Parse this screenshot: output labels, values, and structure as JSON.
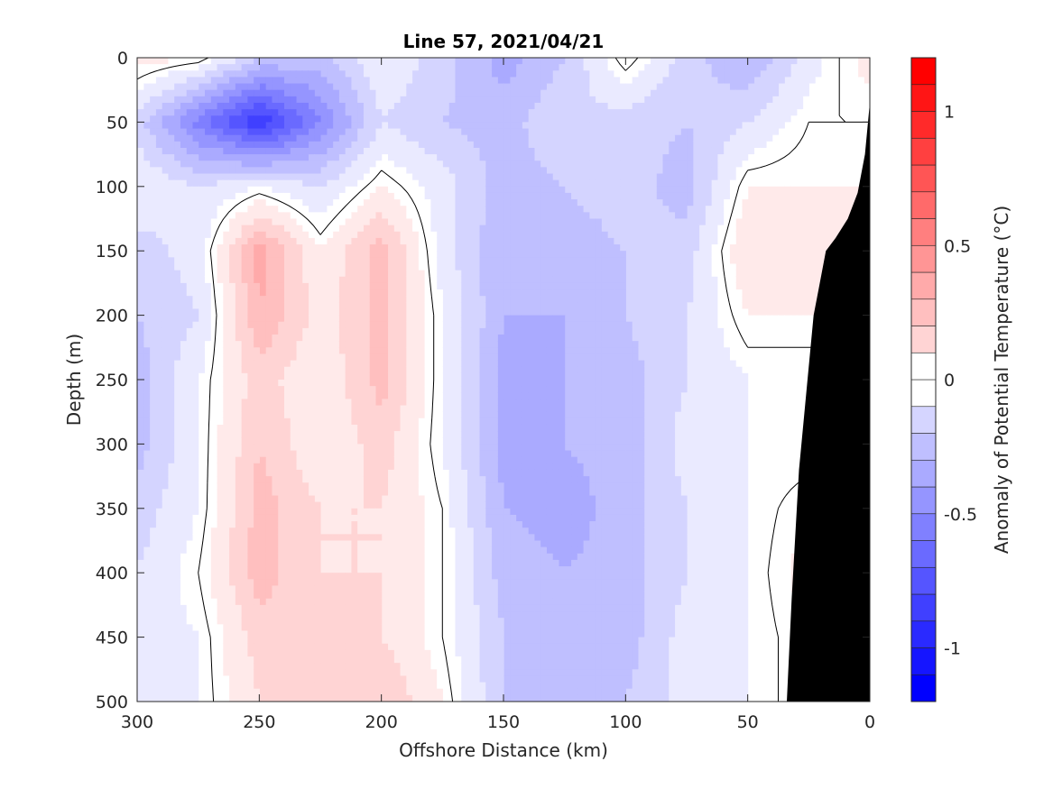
{
  "chart_data": {
    "type": "heatmap",
    "title": "Line 57, 2021/04/21",
    "xlabel": "Offshore Distance (km)",
    "ylabel": "Depth (m)",
    "xlim": [
      300,
      0
    ],
    "ylim": [
      0,
      500
    ],
    "x_axis_reversed": true,
    "y_axis_reversed": true,
    "x_ticks": [
      "300",
      "250",
      "200",
      "150",
      "100",
      "50",
      "0"
    ],
    "x_tick_values": [
      300,
      250,
      200,
      150,
      100,
      50,
      0
    ],
    "y_ticks": [
      "0",
      "50",
      "100",
      "150",
      "200",
      "250",
      "300",
      "350",
      "400",
      "450",
      "500"
    ],
    "y_tick_values": [
      0,
      50,
      100,
      150,
      200,
      250,
      300,
      350,
      400,
      450,
      500
    ],
    "grid": false,
    "contour_level": 0,
    "colorbar": {
      "label": "Anomaly of Potential Temperature (°C)",
      "range": [
        -1.2,
        1.2
      ],
      "step": 0.1,
      "ticks": [
        "1",
        "0.5",
        "0",
        "-0.5",
        "-1"
      ],
      "tick_values": [
        1,
        0.5,
        0,
        -0.5,
        -1
      ],
      "colormap": "blue-white-red",
      "neg_color": "#0000ff",
      "pos_color": "#ff0000",
      "zero_color": "#ffffff"
    },
    "bathymetry_color": "#000000",
    "distance_km": [
      0,
      25,
      50,
      75,
      100,
      125,
      150,
      175,
      200,
      225,
      250,
      275,
      300
    ],
    "depth_m": [
      0,
      50,
      100,
      150,
      200,
      250,
      300,
      350,
      400,
      450,
      500
    ],
    "anomaly_grid_depth_by_distance": [
      [
        0.1,
        -0.1,
        -0.35,
        -0.2,
        0.05,
        -0.25,
        -0.4,
        -0.2,
        -0.05,
        -0.3,
        -0.25,
        0.05,
        0.1
      ],
      [
        null,
        0.0,
        -0.15,
        -0.25,
        -0.2,
        -0.15,
        -0.3,
        -0.25,
        -0.15,
        -0.55,
        -0.95,
        -0.6,
        -0.2
      ],
      [
        null,
        null,
        0.05,
        -0.3,
        -0.2,
        -0.25,
        -0.3,
        -0.1,
        0.05,
        -0.15,
        -0.05,
        -0.15,
        -0.05
      ],
      [
        null,
        null,
        0.15,
        -0.2,
        -0.25,
        -0.3,
        -0.35,
        -0.1,
        0.3,
        0.05,
        0.4,
        -0.1,
        -0.2
      ],
      [
        null,
        null,
        0.05,
        -0.15,
        -0.25,
        -0.35,
        -0.35,
        -0.05,
        0.3,
        0.1,
        0.35,
        -0.15,
        -0.25
      ],
      [
        null,
        null,
        -0.05,
        -0.15,
        -0.3,
        -0.35,
        -0.4,
        -0.05,
        0.3,
        0.05,
        0.2,
        -0.05,
        -0.3
      ],
      [
        null,
        null,
        -0.05,
        -0.1,
        -0.3,
        -0.35,
        -0.4,
        -0.05,
        0.2,
        0.05,
        0.25,
        -0.05,
        -0.3
      ],
      [
        null,
        0.05,
        -0.05,
        -0.15,
        -0.3,
        -0.4,
        -0.35,
        0.0,
        0.15,
        0.15,
        0.3,
        -0.05,
        -0.2
      ],
      [
        null,
        0.1,
        -0.05,
        -0.15,
        -0.3,
        -0.35,
        -0.3,
        0.0,
        0.15,
        0.15,
        0.3,
        0.0,
        -0.15
      ],
      [
        null,
        0.05,
        -0.05,
        -0.1,
        -0.3,
        -0.3,
        -0.25,
        0.0,
        0.15,
        0.2,
        0.2,
        -0.05,
        -0.1
      ],
      [
        null,
        0.05,
        -0.05,
        -0.1,
        -0.25,
        -0.3,
        -0.25,
        0.05,
        0.25,
        0.2,
        0.15,
        -0.05,
        -0.1
      ]
    ]
  }
}
